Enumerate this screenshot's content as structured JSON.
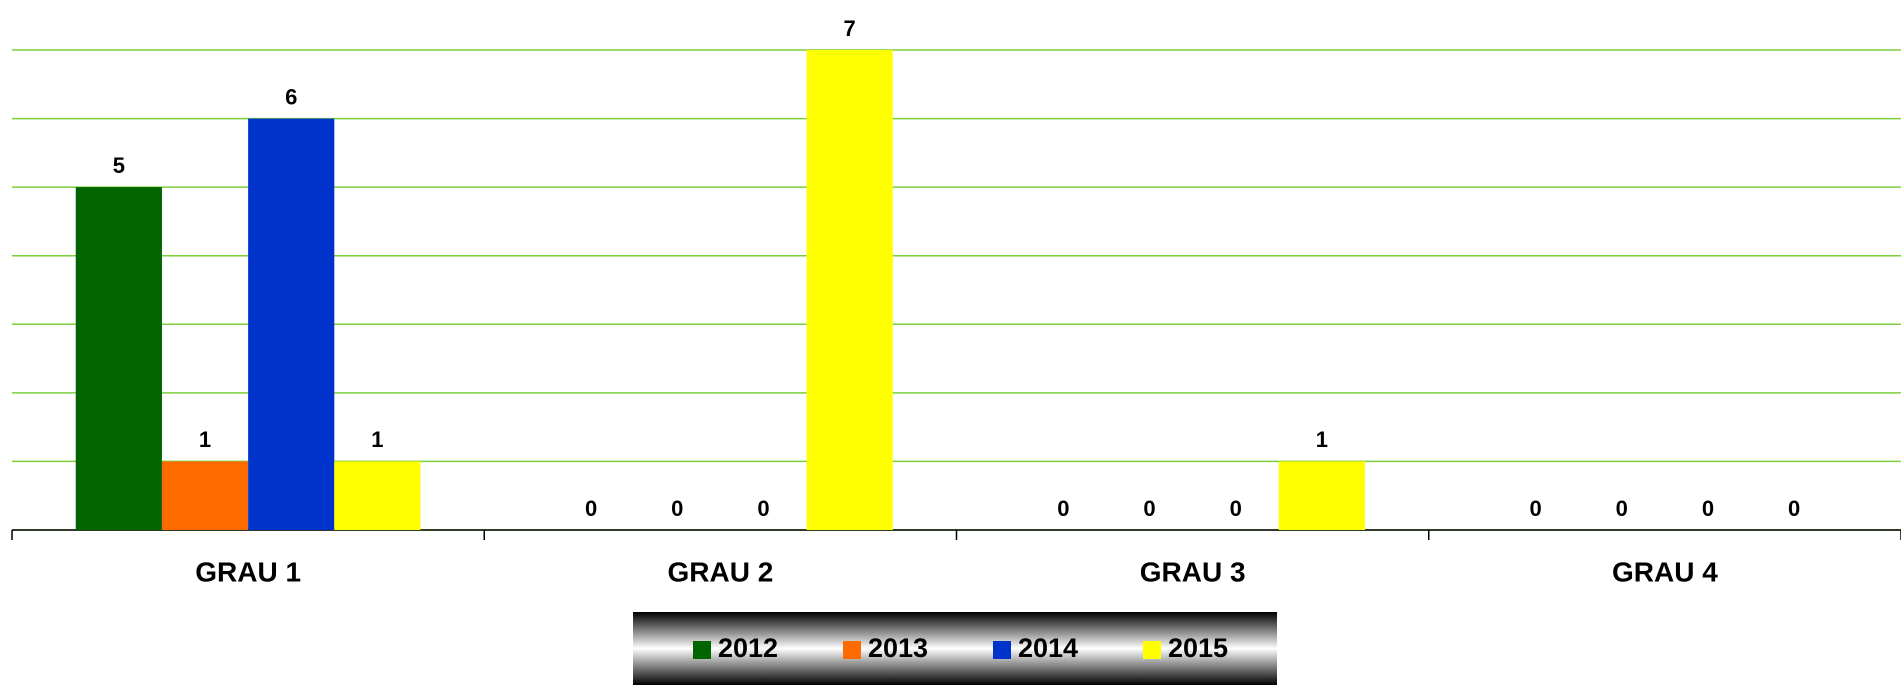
{
  "chart_data": {
    "type": "bar",
    "categories": [
      "GRAU 1",
      "GRAU 2",
      "GRAU 3",
      "GRAU 4"
    ],
    "series": [
      {
        "name": "2012",
        "color": "#006400",
        "values": [
          5,
          0,
          0,
          0
        ]
      },
      {
        "name": "2013",
        "color": "#ff6a00",
        "values": [
          1,
          0,
          0,
          0
        ]
      },
      {
        "name": "2014",
        "color": "#0033cc",
        "values": [
          6,
          0,
          0,
          0
        ]
      },
      {
        "name": "2015",
        "color": "#ffff00",
        "values": [
          1,
          7,
          1,
          0
        ]
      }
    ],
    "ylim": [
      0,
      7
    ],
    "yticks": [
      0,
      1,
      2,
      3,
      4,
      5,
      6,
      7
    ],
    "grid": true,
    "legend": "bottom"
  }
}
